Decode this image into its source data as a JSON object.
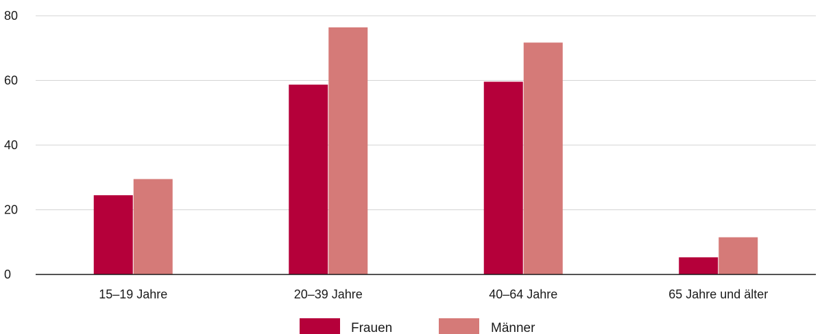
{
  "chart_data": {
    "type": "bar",
    "categories": [
      "15–19 Jahre",
      "20–39 Jahre",
      "40–64 Jahre",
      "65 Jahre und älter"
    ],
    "series": [
      {
        "name": "Frauen",
        "values": [
          24.5,
          58.7,
          59.6,
          5.3
        ],
        "color": "#b5003a"
      },
      {
        "name": "Männer",
        "values": [
          29.5,
          76.4,
          71.7,
          11.5
        ],
        "color": "#d57a78"
      }
    ],
    "y_ticks": [
      "0",
      "20",
      "40",
      "60",
      "80"
    ],
    "ylim": [
      0,
      80
    ],
    "grid": true,
    "legend_position": "bottom-center"
  }
}
